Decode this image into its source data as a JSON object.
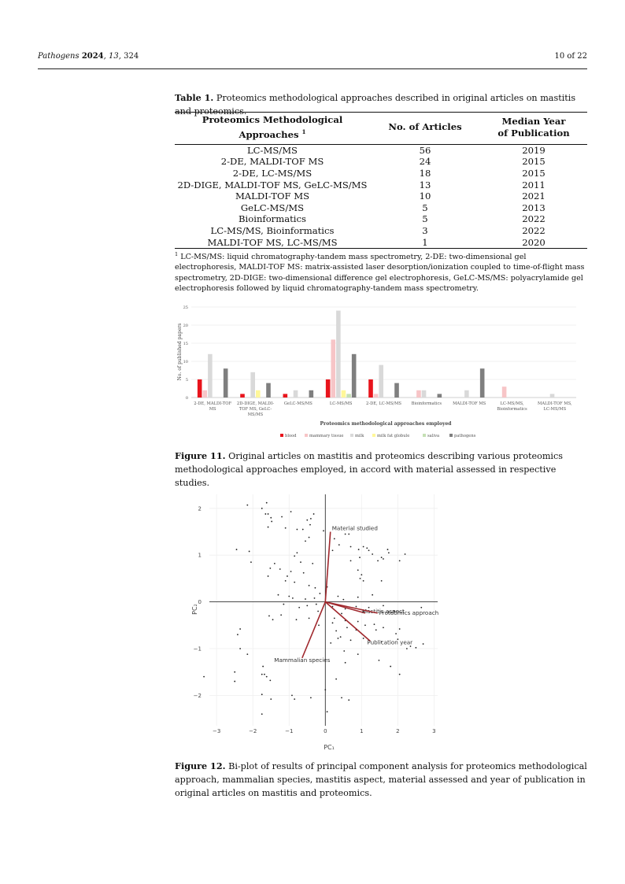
{
  "header": {
    "journal": "Pathogens",
    "year": "2024",
    "volume": "13",
    "article": "324",
    "page": "10 of 22"
  },
  "table1": {
    "label": "Table 1.",
    "caption": "Proteomics methodological approaches described in original articles on mastitis and proteomics.",
    "headers": {
      "approach": "Proteomics Methodological Approaches",
      "approach_sup": "1",
      "count": "No. of Articles",
      "year_line1": "Median Year",
      "year_line2": "of Publication"
    },
    "rows": [
      {
        "approach": "LC-MS/MS",
        "count": "56",
        "year": "2019"
      },
      {
        "approach": "2-DE, MALDI-TOF MS",
        "count": "24",
        "year": "2015"
      },
      {
        "approach": "2-DE, LC-MS/MS",
        "count": "18",
        "year": "2015"
      },
      {
        "approach": "2D-DIGE, MALDI-TOF MS, GeLC-MS/MS",
        "count": "13",
        "year": "2011"
      },
      {
        "approach": "MALDI-TOF MS",
        "count": "10",
        "year": "2021"
      },
      {
        "approach": "GeLC-MS/MS",
        "count": "5",
        "year": "2013"
      },
      {
        "approach": "Bioinformatics",
        "count": "5",
        "year": "2022"
      },
      {
        "approach": "LC-MS/MS, Bioinformatics",
        "count": "3",
        "year": "2022"
      },
      {
        "approach": "MALDI-TOF MS, LC-MS/MS",
        "count": "1",
        "year": "2020"
      }
    ],
    "footnote_sup": "1",
    "footnote": "LC-MS/MS: liquid chromatography-tandem mass spectrometry, 2-DE: two-dimensional gel electrophoresis, MALDI-TOF MS: matrix-assisted laser desorption/ionization coupled to time-of-flight mass spectrometry, 2D-DIGE: two-dimensional difference gel electrophoresis, GeLC-MS/MS: polyacrylamide gel electrophoresis followed by liquid chromatography-tandem mass spectrometry."
  },
  "figure11": {
    "label": "Figure 11.",
    "caption": "Original articles on mastitis and proteomics describing various proteomics methodological approaches employed, in accord with material assessed in respective studies."
  },
  "figure12": {
    "label": "Figure 12.",
    "caption": "Bi-plot of results of principal component analysis for proteomics methodological approach, mammalian species, mastitis aspect, material assessed and year of publication in original articles on mastitis and proteomics."
  },
  "chart_data": [
    {
      "type": "bar",
      "title": "",
      "xlabel": "Proteomics methodological approaches employed",
      "ylabel": "No. of published papers",
      "ylim": [
        0,
        25
      ],
      "yticks": [
        0,
        5,
        10,
        15,
        20,
        25
      ],
      "grid": true,
      "legend_position": "bottom",
      "categories": [
        "2-DE, MALDI-TOF MS",
        "2D-DIGE, MALDI-TOF MS, GeLC-MS/MS",
        "GeLC-MS/MS",
        "LC-MS/MS",
        "2-DE, LC-MS/MS",
        "Bioinformatics",
        "MALDI-TOF MS",
        "LC-MS/MS, Bioinformatics",
        "MALDI-TOF MS, LC-MS/MS"
      ],
      "category_label_lines": [
        [
          "2-DE, MALDI-TOF",
          "MS"
        ],
        [
          "2D-DIGE, MALDI-",
          "TOF MS, GeLC-",
          "MS/MS"
        ],
        [
          "GeLC-MS/MS"
        ],
        [
          "LC-MS/MS"
        ],
        [
          "2-DE, LC-MS/MS"
        ],
        [
          "Bioinformatics"
        ],
        [
          "MALDI-TOF MS"
        ],
        [
          "LC-MS/MS,",
          "Bioinformatics"
        ],
        [
          "MALDI-TOF MS,",
          "LC-MS/MS"
        ]
      ],
      "series": [
        {
          "name": "blood",
          "color": "#e8141c",
          "values": [
            5,
            1,
            1,
            5,
            5,
            0,
            0,
            0,
            0
          ]
        },
        {
          "name": "mammary tissue",
          "color": "#f7c5c7",
          "values": [
            2,
            0,
            0,
            16,
            1,
            2,
            0,
            3,
            0
          ]
        },
        {
          "name": "milk",
          "color": "#d9d9d9",
          "values": [
            12,
            7,
            2,
            24,
            9,
            2,
            2,
            0,
            1
          ]
        },
        {
          "name": "milk fat globule",
          "color": "#fff799",
          "values": [
            0,
            2,
            0,
            2,
            0,
            0,
            0,
            0,
            0
          ]
        },
        {
          "name": "saliva",
          "color": "#c5e0b4",
          "values": [
            0,
            0,
            0,
            1,
            0,
            0,
            0,
            0,
            0
          ]
        },
        {
          "name": "pathogens",
          "color": "#7f7f7f",
          "values": [
            8,
            4,
            2,
            12,
            4,
            1,
            8,
            0,
            0
          ]
        }
      ]
    },
    {
      "type": "scatter",
      "title": "",
      "xlabel": "PC₁",
      "ylabel": "PC₂",
      "xlim": [
        -3.2,
        3.1
      ],
      "ylim": [
        -2.65,
        2.3
      ],
      "xticks": [
        -3,
        -2,
        -1,
        0,
        1,
        2,
        3
      ],
      "yticks": [
        -2,
        -1,
        0,
        1,
        2
      ],
      "tick_labels_x": [
        "−3",
        "−2",
        "−1",
        "0",
        "1",
        "2",
        "3"
      ],
      "tick_labels_y": [
        "−2",
        "−1",
        "0",
        "1",
        "2"
      ],
      "grid": true,
      "point_color": "#222222",
      "vector_color": "#a0282d",
      "vectors": [
        {
          "name": "Material studied",
          "x": 0.07,
          "y": 0.75
        },
        {
          "name": "Mastitis aspect",
          "x": 0.55,
          "y": -0.12
        },
        {
          "name": "Proteomics approach",
          "x": 0.72,
          "y": -0.12
        },
        {
          "name": "Publication year",
          "x": 0.62,
          "y": -0.42
        },
        {
          "name": "Mammalian species",
          "x": -0.32,
          "y": -0.6
        }
      ],
      "points": [
        [
          -2.15,
          2.07
        ],
        [
          -1.75,
          2.0
        ],
        [
          -1.62,
          2.12
        ],
        [
          -1.58,
          1.88
        ],
        [
          -1.65,
          1.88
        ],
        [
          -1.5,
          1.8
        ],
        [
          -1.48,
          1.72
        ],
        [
          -1.2,
          1.82
        ],
        [
          -0.95,
          1.93
        ],
        [
          -0.32,
          1.88
        ],
        [
          -0.4,
          1.78
        ],
        [
          -0.5,
          1.75
        ],
        [
          -1.58,
          1.6
        ],
        [
          -1.1,
          1.58
        ],
        [
          -0.78,
          1.55
        ],
        [
          -0.62,
          1.55
        ],
        [
          -0.42,
          1.65
        ],
        [
          -0.05,
          1.52
        ],
        [
          0.55,
          1.45
        ],
        [
          0.65,
          1.45
        ],
        [
          -0.45,
          1.38
        ],
        [
          0.25,
          1.35
        ],
        [
          -0.55,
          1.3
        ],
        [
          0.38,
          1.22
        ],
        [
          0.7,
          1.18
        ],
        [
          0.92,
          1.12
        ],
        [
          1.05,
          1.18
        ],
        [
          1.15,
          1.15
        ],
        [
          1.2,
          1.1
        ],
        [
          1.72,
          1.12
        ],
        [
          1.75,
          1.05
        ],
        [
          0.2,
          1.1
        ],
        [
          -2.45,
          1.12
        ],
        [
          -2.1,
          1.08
        ],
        [
          -0.78,
          1.05
        ],
        [
          -0.85,
          0.98
        ],
        [
          2.2,
          1.02
        ],
        [
          1.3,
          1.02
        ],
        [
          1.55,
          0.95
        ],
        [
          0.95,
          0.95
        ],
        [
          1.6,
          0.92
        ],
        [
          0.7,
          0.88
        ],
        [
          1.45,
          0.88
        ],
        [
          2.05,
          0.88
        ],
        [
          -2.05,
          0.85
        ],
        [
          -0.68,
          0.85
        ],
        [
          -0.35,
          0.82
        ],
        [
          -1.4,
          0.82
        ],
        [
          -1.52,
          0.72
        ],
        [
          -1.25,
          0.7
        ],
        [
          -0.95,
          0.65
        ],
        [
          -0.6,
          0.62
        ],
        [
          -1.05,
          0.55
        ],
        [
          -1.1,
          0.45
        ],
        [
          -1.58,
          0.55
        ],
        [
          0.9,
          0.68
        ],
        [
          1.0,
          0.58
        ],
        [
          0.96,
          0.5
        ],
        [
          1.05,
          0.45
        ],
        [
          1.55,
          0.45
        ],
        [
          -0.85,
          0.42
        ],
        [
          -0.45,
          0.35
        ],
        [
          -0.28,
          0.3
        ],
        [
          0.05,
          0.32
        ],
        [
          -0.15,
          0.18
        ],
        [
          0.35,
          0.12
        ],
        [
          -1.3,
          0.15
        ],
        [
          -1.0,
          0.12
        ],
        [
          -0.9,
          0.08
        ],
        [
          -0.55,
          0.06
        ],
        [
          -0.3,
          0.08
        ],
        [
          0.5,
          0.05
        ],
        [
          0.9,
          0.1
        ],
        [
          1.3,
          0.15
        ],
        [
          -1.15,
          -0.05
        ],
        [
          -0.72,
          -0.12
        ],
        [
          -0.5,
          -0.08
        ],
        [
          -0.25,
          -0.05
        ],
        [
          0.2,
          -0.1
        ],
        [
          0.55,
          -0.15
        ],
        [
          0.85,
          -0.1
        ],
        [
          1.2,
          -0.12
        ],
        [
          1.6,
          -0.08
        ],
        [
          -0.2,
          -0.2
        ],
        [
          0.45,
          -0.25
        ],
        [
          1.05,
          -0.2
        ],
        [
          1.9,
          -0.2
        ],
        [
          2.65,
          -0.12
        ],
        [
          -1.55,
          -0.3
        ],
        [
          -1.45,
          -0.38
        ],
        [
          -1.22,
          -0.28
        ],
        [
          -0.8,
          -0.38
        ],
        [
          -0.45,
          -0.35
        ],
        [
          0.25,
          -0.35
        ],
        [
          0.55,
          -0.4
        ],
        [
          0.9,
          -0.42
        ],
        [
          1.1,
          -0.5
        ],
        [
          1.35,
          -0.48
        ],
        [
          -0.18,
          -0.5
        ],
        [
          0.2,
          -0.45
        ],
        [
          0.6,
          -0.55
        ],
        [
          0.85,
          -0.6
        ],
        [
          1.6,
          -0.55
        ],
        [
          2.05,
          -0.58
        ],
        [
          1.4,
          -0.6
        ],
        [
          -2.35,
          -0.58
        ],
        [
          -2.42,
          -0.7
        ],
        [
          1.95,
          -0.68
        ],
        [
          0.3,
          -0.62
        ],
        [
          0.42,
          -0.75
        ],
        [
          0.35,
          -0.78
        ],
        [
          0.15,
          -0.88
        ],
        [
          0.7,
          -0.82
        ],
        [
          1.05,
          -0.78
        ],
        [
          1.55,
          -0.85
        ],
        [
          2.0,
          -0.8
        ],
        [
          2.35,
          -0.95
        ],
        [
          2.5,
          -0.98
        ],
        [
          2.7,
          -0.9
        ],
        [
          -2.35,
          -1.0
        ],
        [
          -2.15,
          -1.12
        ],
        [
          0.52,
          -1.05
        ],
        [
          0.9,
          -1.12
        ],
        [
          2.25,
          -1.0
        ],
        [
          -1.72,
          -1.38
        ],
        [
          1.48,
          -1.25
        ],
        [
          0.55,
          -1.3
        ],
        [
          1.8,
          -1.38
        ],
        [
          -3.35,
          -1.6
        ],
        [
          -2.5,
          -1.5
        ],
        [
          -2.5,
          -1.7
        ],
        [
          -1.75,
          -1.55
        ],
        [
          -1.68,
          -1.55
        ],
        [
          -1.62,
          -1.6
        ],
        [
          -1.52,
          -1.68
        ],
        [
          0.3,
          -1.65
        ],
        [
          2.05,
          -1.55
        ],
        [
          -1.75,
          -1.98
        ],
        [
          -1.5,
          -2.08
        ],
        [
          -0.92,
          -2.0
        ],
        [
          -0.85,
          -2.08
        ],
        [
          -0.4,
          -2.05
        ],
        [
          0.0,
          -1.88
        ],
        [
          0.45,
          -2.05
        ],
        [
          0.65,
          -2.1
        ],
        [
          -1.75,
          -2.4
        ],
        [
          0.05,
          -2.35
        ]
      ]
    }
  ]
}
